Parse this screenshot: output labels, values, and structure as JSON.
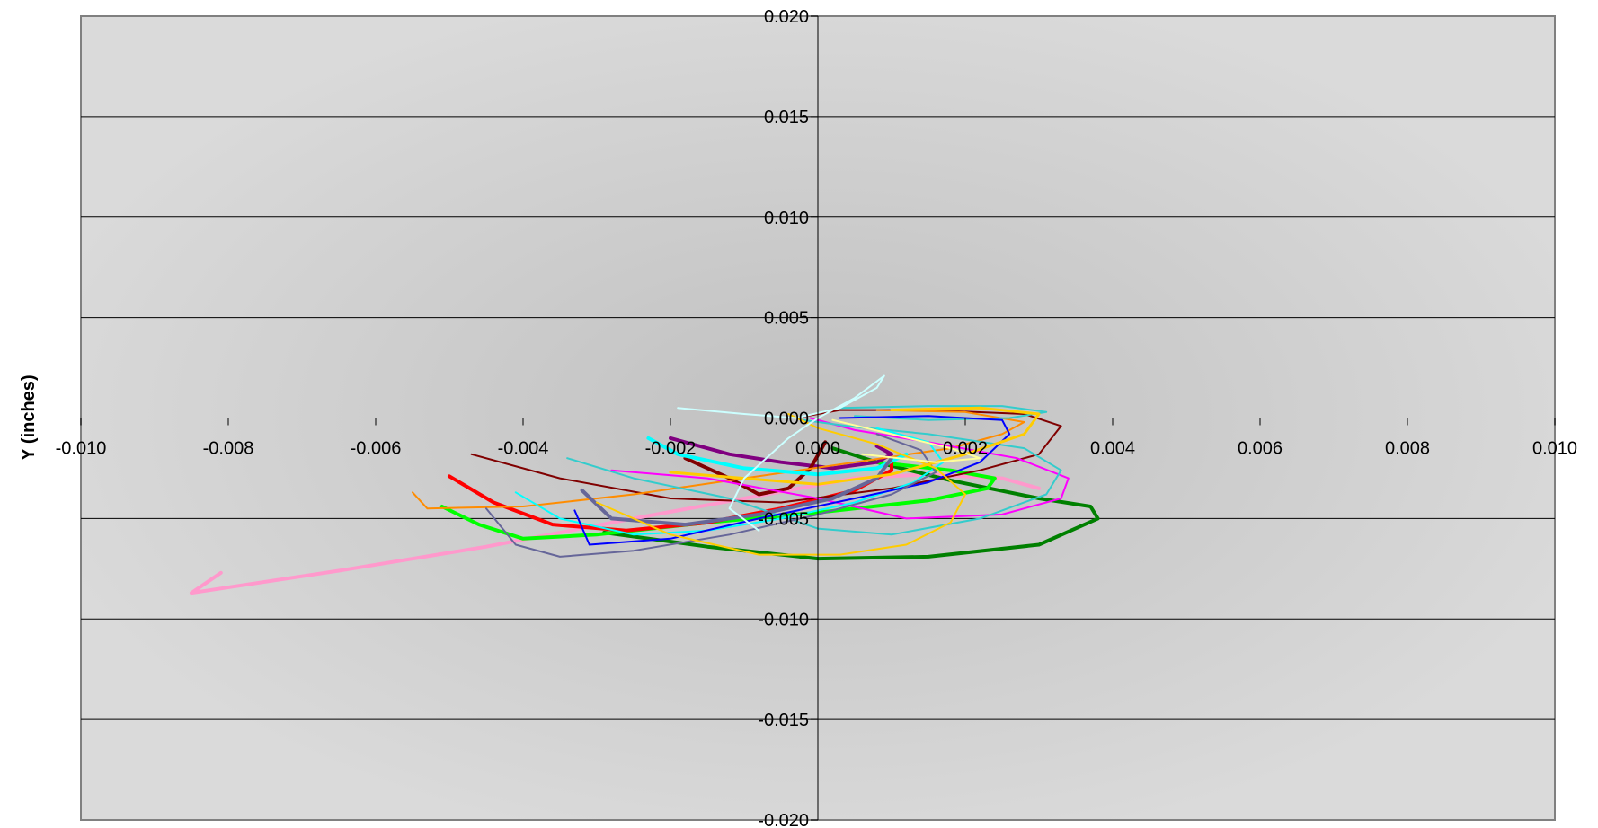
{
  "chart_data": {
    "type": "line",
    "title": "",
    "xlabel": "",
    "ylabel": "Y (inches)",
    "xlim": [
      -0.01,
      0.01
    ],
    "ylim": [
      -0.02,
      0.02
    ],
    "x_ticks": [
      -0.01,
      -0.008,
      -0.006,
      -0.004,
      -0.002,
      0.0,
      0.002,
      0.004,
      0.006,
      0.008,
      0.01
    ],
    "x_tick_labels": [
      "-0.010",
      "-0.008",
      "-0.006",
      "-0.004",
      "-0.002",
      "0.000",
      "0.002",
      "0.004",
      "0.006",
      "0.008",
      "0.010"
    ],
    "y_ticks": [
      0.02,
      0.015,
      0.01,
      0.005,
      0.0,
      -0.005,
      -0.01,
      -0.015,
      -0.02
    ],
    "y_tick_labels": [
      "0.020",
      "0.015",
      "0.010",
      "0.005",
      "0.000",
      "-0.005",
      "-0.010",
      "-0.015",
      "-0.020"
    ],
    "grid": "horizontal",
    "legend": "none",
    "plot_background": "gray radial gradient",
    "series": [
      {
        "color": "#ff99cc",
        "width": 4,
        "values": [
          [
            -0.0081,
            -0.0077
          ],
          [
            -0.0085,
            -0.0087
          ],
          [
            -0.0065,
            -0.0076
          ],
          [
            -0.0045,
            -0.0064
          ],
          [
            -0.0025,
            -0.005
          ],
          [
            -0.001,
            -0.004
          ],
          [
            0.0005,
            -0.003
          ],
          [
            0.0015,
            -0.0028
          ],
          [
            0.0025,
            -0.003
          ],
          [
            0.003,
            -0.0035
          ]
        ]
      },
      {
        "color": "#008000",
        "width": 4,
        "values": [
          [
            -0.0029,
            -0.0057
          ],
          [
            -0.0015,
            -0.0064
          ],
          [
            0.0,
            -0.007
          ],
          [
            0.0015,
            -0.0069
          ],
          [
            0.003,
            -0.0063
          ],
          [
            0.0038,
            -0.005
          ],
          [
            0.0037,
            -0.0044
          ],
          [
            0.003,
            -0.004
          ],
          [
            0.0018,
            -0.0031
          ],
          [
            0.0008,
            -0.0022
          ],
          [
            0.0002,
            -0.0015
          ]
        ]
      },
      {
        "color": "#00ff00",
        "width": 4,
        "values": [
          [
            -0.0051,
            -0.0044
          ],
          [
            -0.0046,
            -0.0053
          ],
          [
            -0.004,
            -0.006
          ],
          [
            -0.003,
            -0.0058
          ],
          [
            -0.0015,
            -0.0052
          ],
          [
            0.0,
            -0.0047
          ],
          [
            0.0015,
            -0.0041
          ],
          [
            0.0023,
            -0.0035
          ],
          [
            0.0024,
            -0.003
          ],
          [
            0.0018,
            -0.0026
          ],
          [
            0.0008,
            -0.0022
          ]
        ]
      },
      {
        "color": "#ff0000",
        "width": 4,
        "values": [
          [
            -0.005,
            -0.0029
          ],
          [
            -0.0044,
            -0.0042
          ],
          [
            -0.0036,
            -0.0053
          ],
          [
            -0.0026,
            -0.0056
          ],
          [
            -0.0015,
            -0.0052
          ],
          [
            -0.0005,
            -0.0045
          ],
          [
            0.0005,
            -0.0036
          ],
          [
            0.001,
            -0.0026
          ],
          [
            0.001,
            -0.002
          ]
        ]
      },
      {
        "color": "#800080",
        "width": 4,
        "values": [
          [
            -0.002,
            -0.001
          ],
          [
            -0.0012,
            -0.0018
          ],
          [
            -0.0005,
            -0.0022
          ],
          [
            0.0002,
            -0.0025
          ],
          [
            0.0008,
            -0.0022
          ],
          [
            0.001,
            -0.0018
          ],
          [
            0.0008,
            -0.0014
          ]
        ]
      },
      {
        "color": "#800000",
        "width": 2,
        "values": [
          [
            -0.0047,
            -0.0018
          ],
          [
            -0.0035,
            -0.003
          ],
          [
            -0.002,
            -0.004
          ],
          [
            -0.0005,
            -0.0042
          ],
          [
            0.001,
            -0.0035
          ],
          [
            0.0022,
            -0.0026
          ],
          [
            0.003,
            -0.0018
          ],
          [
            0.0033,
            -0.0004
          ],
          [
            0.0028,
            0.0002
          ],
          [
            0.0015,
            0.0004
          ],
          [
            0.0003,
            0.0004
          ],
          [
            -0.0003,
            0.0
          ]
        ]
      },
      {
        "color": "#800000",
        "width": 4,
        "values": [
          [
            -0.0018,
            -0.002
          ],
          [
            -0.0012,
            -0.003
          ],
          [
            -0.0008,
            -0.0038
          ],
          [
            -0.0004,
            -0.0035
          ],
          [
            -0.0001,
            -0.0025
          ],
          [
            0.0001,
            -0.0012
          ]
        ]
      },
      {
        "color": "#ff8c00",
        "width": 2,
        "values": [
          [
            -0.0055,
            -0.0037
          ],
          [
            -0.0053,
            -0.0045
          ],
          [
            -0.004,
            -0.0044
          ],
          [
            -0.0025,
            -0.0038
          ],
          [
            -0.001,
            -0.003
          ],
          [
            0.0005,
            -0.0022
          ],
          [
            0.0018,
            -0.0015
          ],
          [
            0.0025,
            -0.0008
          ],
          [
            0.0028,
            -0.0002
          ],
          [
            0.002,
            0.0003
          ],
          [
            0.0008,
            0.0004
          ]
        ]
      },
      {
        "color": "#ff00ff",
        "width": 2,
        "values": [
          [
            -0.0028,
            -0.0026
          ],
          [
            -0.0015,
            -0.003
          ],
          [
            0.0,
            -0.004
          ],
          [
            0.0012,
            -0.005
          ],
          [
            0.0025,
            -0.0048
          ],
          [
            0.0033,
            -0.004
          ],
          [
            0.0034,
            -0.003
          ],
          [
            0.0027,
            -0.002
          ],
          [
            0.0015,
            -0.0012
          ],
          [
            0.0005,
            -0.0006
          ],
          [
            -0.0001,
            0.0
          ]
        ]
      },
      {
        "color": "#33cccc",
        "width": 2,
        "values": [
          [
            -0.0034,
            -0.002
          ],
          [
            -0.0025,
            -0.003
          ],
          [
            -0.0012,
            -0.004
          ],
          [
            0.0,
            -0.0055
          ],
          [
            0.001,
            -0.0058
          ],
          [
            0.0022,
            -0.005
          ],
          [
            0.0031,
            -0.0038
          ],
          [
            0.0033,
            -0.0026
          ],
          [
            0.0028,
            -0.0015
          ],
          [
            0.0015,
            -0.0008
          ],
          [
            0.0004,
            -0.0004
          ],
          [
            -0.0002,
            -0.0001
          ]
        ]
      },
      {
        "color": "#33cccc",
        "width": 2,
        "values": [
          [
            0.0003,
            0.0005
          ],
          [
            0.0015,
            0.0006
          ],
          [
            0.0025,
            0.0006
          ],
          [
            0.0031,
            0.0003
          ],
          [
            0.0026,
            0.0
          ],
          [
            0.0015,
            -0.0001
          ],
          [
            0.0005,
            0.0001
          ]
        ]
      },
      {
        "color": "#00ffff",
        "width": 4,
        "values": [
          [
            -0.0023,
            -0.001
          ],
          [
            -0.0019,
            -0.0018
          ],
          [
            -0.001,
            -0.0025
          ],
          [
            0.0,
            -0.0028
          ],
          [
            0.0008,
            -0.0025
          ],
          [
            0.0012,
            -0.0018
          ]
        ]
      },
      {
        "color": "#00ffff",
        "width": 2,
        "values": [
          [
            -0.0041,
            -0.0037
          ],
          [
            -0.0035,
            -0.005
          ],
          [
            -0.0025,
            -0.0058
          ],
          [
            -0.0015,
            -0.0056
          ],
          [
            -0.0005,
            -0.005
          ],
          [
            0.0005,
            -0.0042
          ],
          [
            0.0013,
            -0.0032
          ],
          [
            0.0017,
            -0.0022
          ],
          [
            0.0015,
            -0.0012
          ],
          [
            0.0008,
            -0.0005
          ]
        ]
      },
      {
        "color": "#0000ff",
        "width": 2,
        "values": [
          [
            -0.0033,
            -0.0046
          ],
          [
            -0.0031,
            -0.0063
          ],
          [
            -0.002,
            -0.006
          ],
          [
            -0.0008,
            -0.005
          ],
          [
            0.0005,
            -0.004
          ],
          [
            0.0015,
            -0.0032
          ],
          [
            0.0022,
            -0.0022
          ],
          [
            0.0026,
            -0.0008
          ],
          [
            0.0025,
            -0.0001
          ],
          [
            0.0015,
            0.0001
          ],
          [
            0.0003,
            0.0
          ]
        ]
      },
      {
        "color": "#666699",
        "width": 2,
        "values": [
          [
            -0.0045,
            -0.0045
          ],
          [
            -0.0041,
            -0.0063
          ],
          [
            -0.0035,
            -0.0069
          ],
          [
            -0.0025,
            -0.0066
          ],
          [
            -0.0012,
            -0.0058
          ],
          [
            0.0,
            -0.0048
          ],
          [
            0.001,
            -0.0038
          ],
          [
            0.0016,
            -0.0027
          ],
          [
            0.0014,
            -0.0016
          ],
          [
            0.0008,
            -0.0008
          ]
        ]
      },
      {
        "color": "#666699",
        "width": 4,
        "values": [
          [
            -0.0032,
            -0.0036
          ],
          [
            -0.0028,
            -0.005
          ],
          [
            -0.0018,
            -0.0053
          ],
          [
            -0.0008,
            -0.0048
          ],
          [
            0.0002,
            -0.004
          ],
          [
            0.0008,
            -0.003
          ],
          [
            0.001,
            -0.002
          ]
        ]
      },
      {
        "color": "#ffcc00",
        "width": 2,
        "values": [
          [
            -0.003,
            -0.0042
          ],
          [
            -0.002,
            -0.0058
          ],
          [
            -0.0008,
            -0.0068
          ],
          [
            0.0003,
            -0.0068
          ],
          [
            0.0012,
            -0.0063
          ],
          [
            0.0018,
            -0.0052
          ],
          [
            0.002,
            -0.0038
          ],
          [
            0.0016,
            -0.0025
          ],
          [
            0.0008,
            -0.0013
          ],
          [
            0.0,
            -0.0005
          ],
          [
            -0.0004,
            0.0002
          ]
        ]
      },
      {
        "color": "#ffcc00",
        "width": 3,
        "values": [
          [
            -0.002,
            -0.0027
          ],
          [
            -0.001,
            -0.003
          ],
          [
            0.0,
            -0.0033
          ],
          [
            0.001,
            -0.0028
          ],
          [
            0.002,
            -0.0018
          ],
          [
            0.0028,
            -0.0008
          ],
          [
            0.003,
            0.0002
          ],
          [
            0.0022,
            0.0005
          ],
          [
            0.001,
            0.0004
          ]
        ]
      },
      {
        "color": "#ccffff",
        "width": 2,
        "values": [
          [
            -0.0019,
            0.0005
          ],
          [
            -0.001,
            0.0002
          ],
          [
            -0.0003,
            0.0
          ],
          [
            0.0003,
            0.0005
          ],
          [
            0.0008,
            0.0015
          ],
          [
            0.0009,
            0.0021
          ],
          [
            0.0005,
            0.001
          ],
          [
            0.0,
            0.0
          ],
          [
            -0.0004,
            -0.001
          ],
          [
            -0.001,
            -0.003
          ],
          [
            -0.0012,
            -0.0045
          ],
          [
            -0.0008,
            -0.0056
          ]
        ]
      },
      {
        "color": "#ffff99",
        "width": 2,
        "values": [
          [
            0.0002,
            -0.0001
          ],
          [
            0.001,
            -0.0008
          ],
          [
            0.0018,
            -0.0015
          ],
          [
            0.0022,
            -0.002
          ],
          [
            0.0016,
            -0.0022
          ],
          [
            0.0006,
            -0.0018
          ]
        ]
      }
    ]
  }
}
